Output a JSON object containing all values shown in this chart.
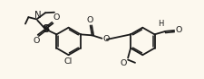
{
  "bg_color": "#fcf8ee",
  "line_color": "#1a1a1a",
  "lw": 1.3,
  "fs": 6.8,
  "xlim": [
    0,
    22
  ],
  "ylim": [
    0,
    8.8
  ]
}
